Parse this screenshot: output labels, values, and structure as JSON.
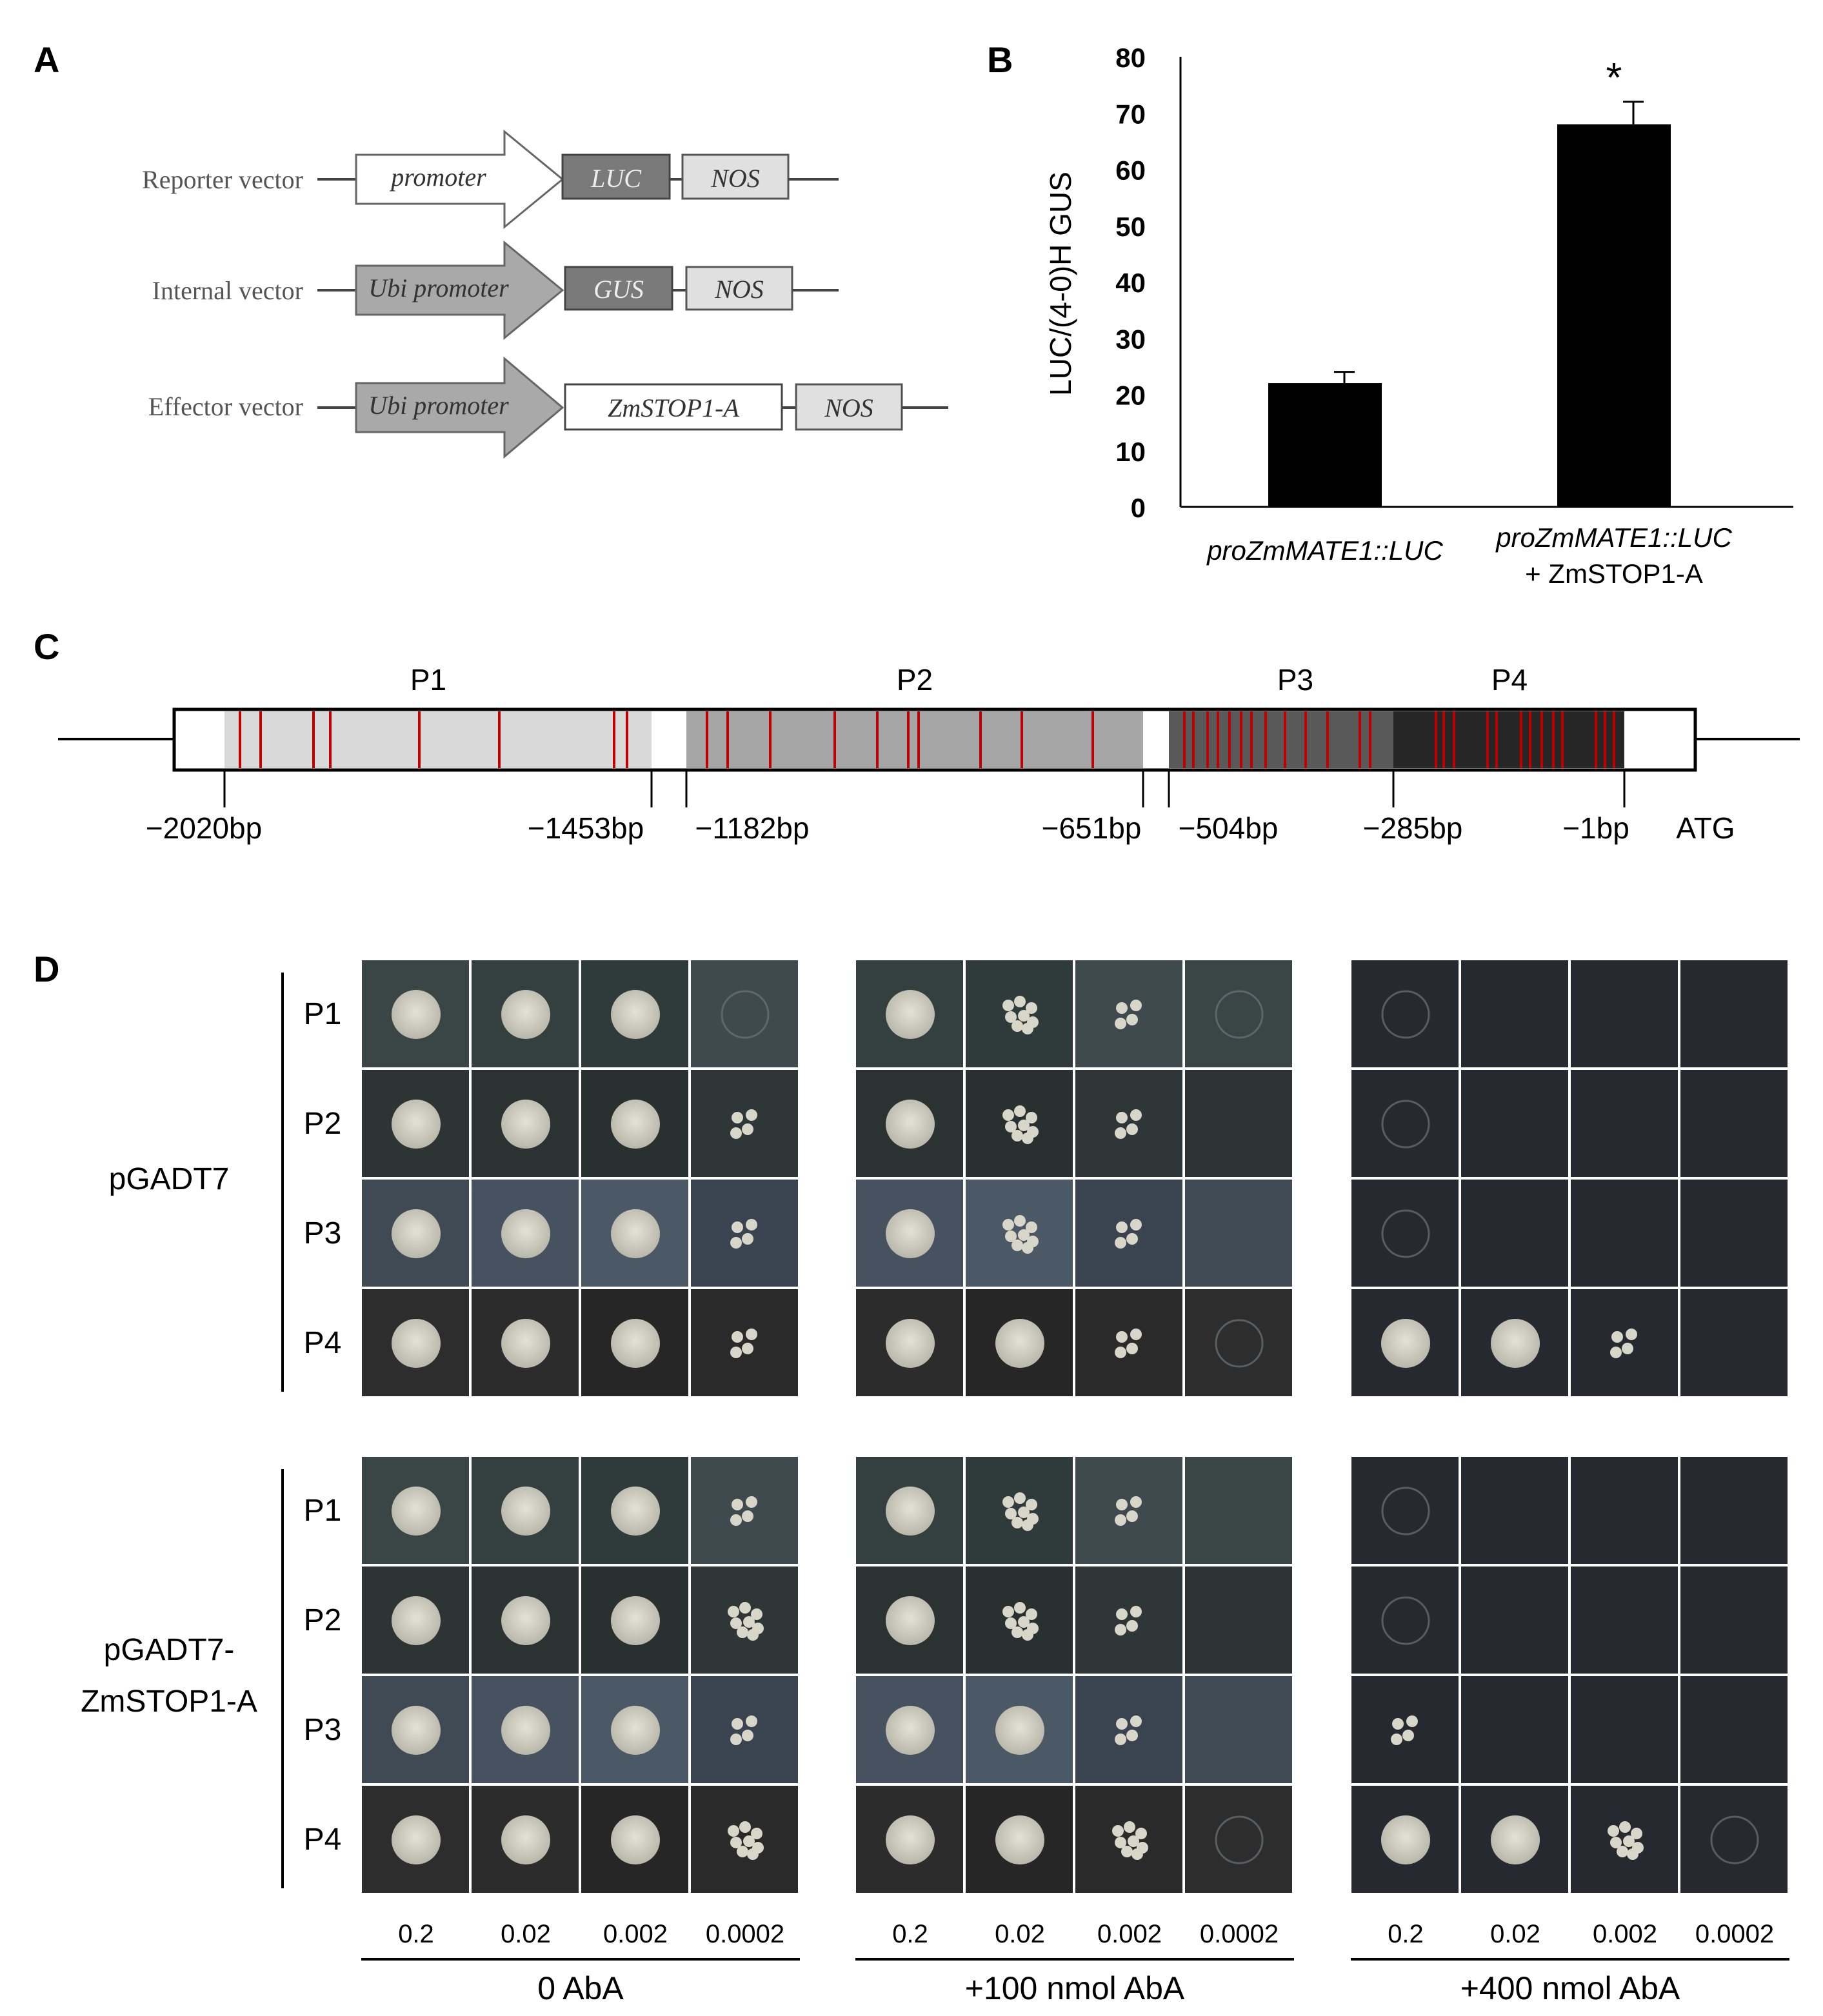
{
  "panel_labels": {
    "a": "A",
    "b": "B",
    "c": "C",
    "d": "D"
  },
  "panel_a": {
    "rows": [
      {
        "name": "Reporter vector",
        "arrow": "promoter",
        "box": "LUC",
        "term": "NOS",
        "arrow_fill": "#ffffff",
        "box_fill": "#7a7a7a"
      },
      {
        "name": "Internal vector",
        "arrow": "Ubi promoter",
        "box": "GUS",
        "term": "NOS",
        "arrow_fill": "#a9a9a9",
        "box_fill": "#7a7a7a"
      },
      {
        "name": "Effector vector",
        "arrow": "Ubi promoter",
        "box": "ZmSTOP1-A",
        "term": "NOS",
        "arrow_fill": "#a9a9a9",
        "box_fill": "#ffffff"
      }
    ]
  },
  "chart_data": {
    "type": "bar",
    "title": "",
    "ylabel": "LUC/(4-0)H GUS",
    "xlabel": "",
    "ylim": [
      0,
      80
    ],
    "yticks": [
      0,
      10,
      20,
      30,
      40,
      50,
      60,
      70,
      80
    ],
    "categories": [
      "proZmMATE1::LUC",
      "proZmMATE1::LUC + ZmSTOP1-A"
    ],
    "category_lines": [
      [
        "proZmMATE1::LUC"
      ],
      [
        "proZmMATE1::LUC",
        "+ ZmSTOP1-A"
      ]
    ],
    "values": [
      22,
      68
    ],
    "errors": [
      2,
      4
    ],
    "annotations": [
      "",
      "*"
    ],
    "bar_color": "#000000",
    "grid": false
  },
  "panel_c": {
    "segments": [
      {
        "name": "P1",
        "fill": "#d9d9d9"
      },
      {
        "name": "P2",
        "fill": "#a6a6a6"
      },
      {
        "name": "P3",
        "fill": "#595959"
      },
      {
        "name": "P4",
        "fill": "#262626"
      }
    ],
    "positions": [
      "−2020bp",
      "−1453bp",
      "−1182bp",
      "−651bp",
      "−504bp",
      "−285bp",
      "−1bp"
    ],
    "end_label": "ATG",
    "site_color": "#c00000"
  },
  "panel_d": {
    "groups": [
      "pGADT7",
      "pGADT7-ZmSTOP1-A"
    ],
    "group_lines": [
      [
        "pGADT7"
      ],
      [
        "pGADT7-",
        "ZmSTOP1-A"
      ]
    ],
    "rows": [
      "P1",
      "P2",
      "P3",
      "P4"
    ],
    "dilutions": [
      "0.2",
      "0.02",
      "0.002",
      "0.0002"
    ],
    "conditions": [
      "0 AbA",
      "+100 nmol AbA",
      "+400 nmol AbA"
    ],
    "growth": [
      [
        [
          4,
          4,
          4,
          1
        ],
        [
          4,
          3,
          2,
          1
        ],
        [
          1,
          0,
          0,
          0
        ]
      ],
      [
        [
          4,
          4,
          4,
          2
        ],
        [
          4,
          3,
          2,
          0
        ],
        [
          1,
          0,
          0,
          0
        ]
      ],
      [
        [
          4,
          4,
          4,
          2
        ],
        [
          4,
          3,
          2,
          0
        ],
        [
          1,
          0,
          0,
          0
        ]
      ],
      [
        [
          4,
          4,
          4,
          2
        ],
        [
          4,
          4,
          2,
          1
        ],
        [
          4,
          4,
          2,
          0
        ]
      ],
      [
        [
          4,
          4,
          4,
          2
        ],
        [
          4,
          3,
          2,
          0
        ],
        [
          1,
          0,
          0,
          0
        ]
      ],
      [
        [
          4,
          4,
          4,
          3
        ],
        [
          4,
          3,
          2,
          0
        ],
        [
          1,
          0,
          0,
          0
        ]
      ],
      [
        [
          4,
          4,
          4,
          2
        ],
        [
          4,
          4,
          2,
          0
        ],
        [
          2,
          0,
          0,
          0
        ]
      ],
      [
        [
          4,
          4,
          4,
          3
        ],
        [
          4,
          4,
          3,
          1
        ],
        [
          4,
          4,
          3,
          1
        ]
      ]
    ]
  }
}
